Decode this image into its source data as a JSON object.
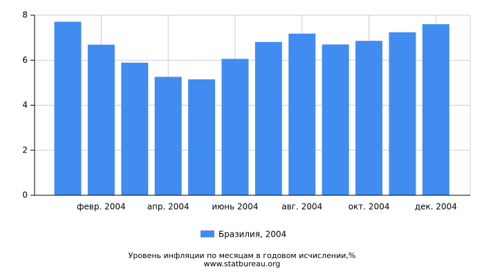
{
  "chart_data": {
    "type": "bar",
    "categories": [
      null,
      "февр. 2004",
      null,
      "апр. 2004",
      null,
      "июнь 2004",
      null,
      "авг. 2004",
      null,
      "окт. 2004",
      null,
      "дек. 2004"
    ],
    "series": [
      {
        "name": "Бразилия, 2004",
        "color": "#418cf0",
        "values": [
          7.71,
          6.69,
          5.89,
          5.26,
          5.15,
          6.06,
          6.81,
          7.18,
          6.7,
          6.86,
          7.24,
          7.6
        ]
      }
    ],
    "ylim": [
      0,
      8
    ],
    "yticks": [
      0,
      2,
      4,
      6,
      8
    ],
    "grid": true,
    "footer": [
      "Уровень инфляции по месяцам в годовом исчислении,%",
      "www.statbureau.org"
    ]
  }
}
